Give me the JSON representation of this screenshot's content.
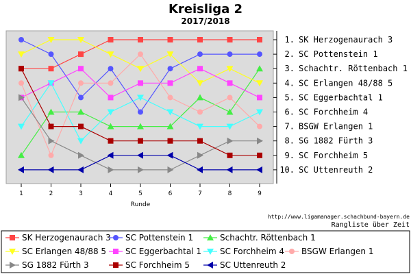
{
  "chart_data": {
    "type": "line",
    "title": "Kreisliga 2",
    "subtitle": "2017/2018",
    "xlabel": "Runde",
    "ylabel": "",
    "x": [
      1,
      2,
      3,
      4,
      5,
      6,
      7,
      8,
      9
    ],
    "ylim": [
      1,
      10
    ],
    "y_inverted": true,
    "grid": false,
    "legend_position": "bottom",
    "rank_labels": [
      "1. SK Herzogenaurach 3",
      "2. SC Pottenstein 1",
      "3. Schachtr. Röttenbach 1",
      "4. SC Erlangen 48/88 5",
      "5. SC Eggerbachtal 1",
      "6. SC Forchheim 4",
      "7. BSGW Erlangen 1",
      "8. SG 1882 Fürth 3",
      "9. SC Forchheim 5",
      "10. SC Uttenreuth 2"
    ],
    "series": [
      {
        "name": "SK Herzogenaurach 3",
        "color": "#ff4444",
        "marker": "square",
        "values": [
          3,
          3,
          2,
          1,
          1,
          1,
          1,
          1,
          1
        ]
      },
      {
        "name": "SC Pottenstein 1",
        "color": "#5555ff",
        "marker": "circle",
        "values": [
          1,
          2,
          5,
          3,
          6,
          3,
          2,
          2,
          2
        ]
      },
      {
        "name": "Schachtr. Röttenbach 1",
        "color": "#44ee44",
        "marker": "triangle-up",
        "values": [
          9,
          6,
          6,
          7,
          7,
          7,
          5,
          6,
          3
        ]
      },
      {
        "name": "SC Erlangen 48/88 5",
        "color": "#ffff22",
        "marker": "triangle-down",
        "values": [
          2,
          1,
          1,
          2,
          3,
          2,
          4,
          3,
          4
        ]
      },
      {
        "name": "SC Eggerbachtal 1",
        "color": "#ff44ff",
        "marker": "square",
        "values": [
          5,
          4,
          3,
          5,
          4,
          4,
          3,
          4,
          5
        ]
      },
      {
        "name": "SC Forchheim 4",
        "color": "#44ffff",
        "marker": "triangle-down",
        "values": [
          7,
          4,
          8,
          6,
          5,
          6,
          7,
          7,
          6
        ]
      },
      {
        "name": "BSGW Erlangen 1",
        "color": "#ffaaaa",
        "marker": "circle",
        "values": [
          4,
          9,
          4,
          4,
          2,
          5,
          6,
          5,
          7
        ]
      },
      {
        "name": "SG 1882 Fürth 3",
        "color": "#888888",
        "marker": "triangle-right",
        "values": [
          5,
          8,
          9,
          10,
          10,
          10,
          9,
          8,
          8
        ]
      },
      {
        "name": "SC Forchheim 5",
        "color": "#aa0000",
        "marker": "square",
        "values": [
          3,
          7,
          7,
          8,
          8,
          8,
          8,
          9,
          9
        ]
      },
      {
        "name": "SC Uttenreuth 2",
        "color": "#0000aa",
        "marker": "triangle-left",
        "values": [
          10,
          10,
          10,
          9,
          9,
          9,
          10,
          10,
          10
        ]
      }
    ]
  },
  "source_url": "http://www.ligamanager.schachbund-bayern.de",
  "source_caption": "Rangliste über Zeit"
}
